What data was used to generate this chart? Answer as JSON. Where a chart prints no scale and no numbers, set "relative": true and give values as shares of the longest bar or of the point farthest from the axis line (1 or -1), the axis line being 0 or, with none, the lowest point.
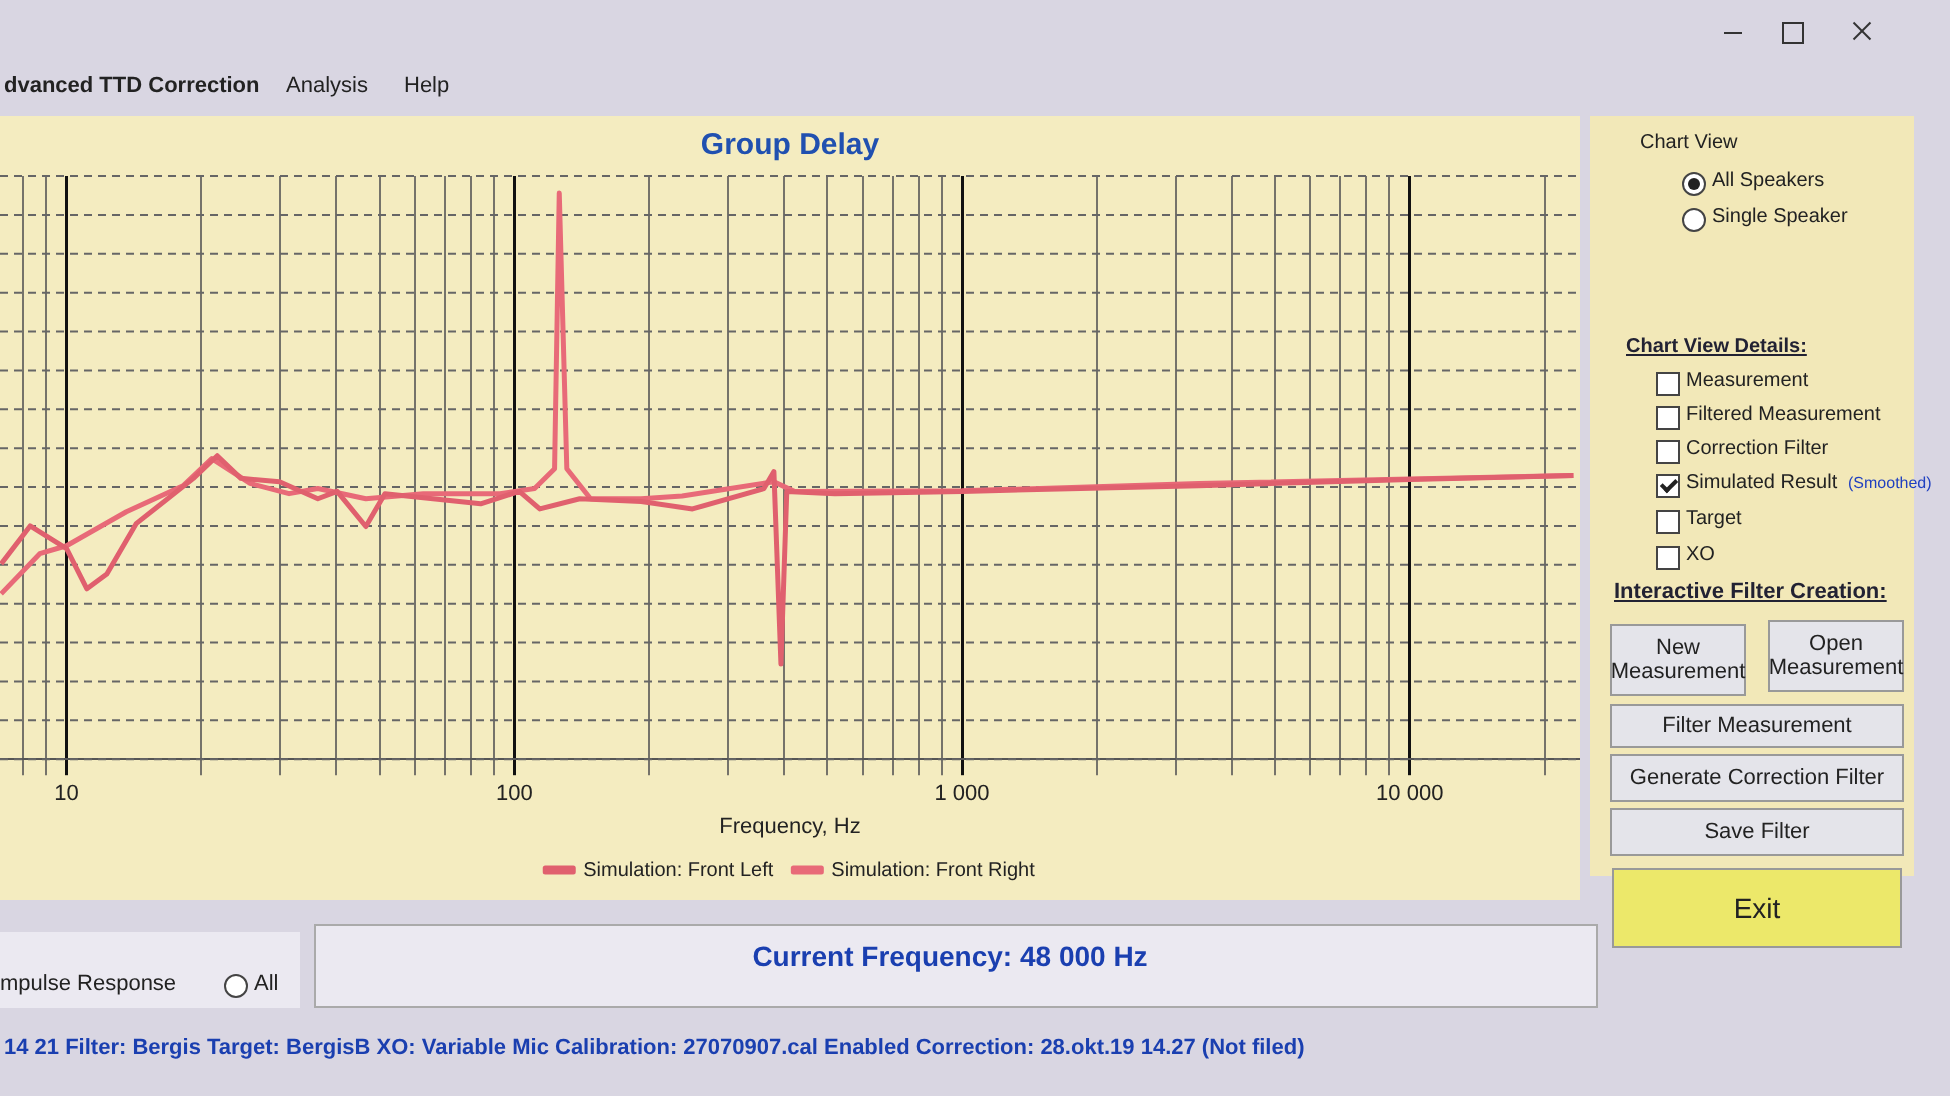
{
  "chart_data": {
    "type": "line",
    "title": "Group Delay",
    "xlabel": "Frequency, Hz",
    "relative": true,
    "log": "x",
    "xlim": [
      7.1,
      24000
    ],
    "xticks": [
      {
        "value": 8,
        "label": null
      },
      {
        "value": 9,
        "label": null
      },
      10,
      {
        "value": 20,
        "label": null
      },
      {
        "value": 30,
        "label": null
      },
      {
        "value": 40,
        "label": null
      },
      {
        "value": 50,
        "label": null
      },
      {
        "value": 60,
        "label": null
      },
      {
        "value": 70,
        "label": null
      },
      {
        "value": 80,
        "label": null
      },
      {
        "value": 90,
        "label": null
      },
      100,
      {
        "value": 200,
        "label": null
      },
      {
        "value": 300,
        "label": null
      },
      {
        "value": 400,
        "label": null
      },
      {
        "value": 500,
        "label": null
      },
      {
        "value": 600,
        "label": null
      },
      {
        "value": 700,
        "label": null
      },
      {
        "value": 800,
        "label": null
      },
      {
        "value": 900,
        "label": null
      },
      {
        "value": 1000,
        "label": "1 000"
      },
      {
        "value": 2000,
        "label": null
      },
      {
        "value": 3000,
        "label": null
      },
      {
        "value": 4000,
        "label": null
      },
      {
        "value": 5000,
        "label": null
      },
      {
        "value": 6000,
        "label": null
      },
      {
        "value": 7000,
        "label": null
      },
      {
        "value": 8000,
        "label": null
      },
      {
        "value": 9000,
        "label": null
      },
      {
        "value": 10000,
        "label": "10 000"
      },
      {
        "value": 20000,
        "label": null
      }
    ],
    "grid": true,
    "legend": "bottom",
    "marker": "none",
    "line_style": "solid",
    "series": [
      {
        "name": "Simulation: Front Left",
        "color": "#e0606e",
        "x": [
          7.14,
          8.29,
          10,
          11.1,
          12.3,
          14.3,
          19.2,
          21.7,
          24.5,
          29.9,
          36.4,
          40.2,
          46.6,
          51.4,
          65.8,
          84.1,
          102.6,
          114,
          140,
          192,
          250,
          361,
          380,
          394,
          406,
          520,
          1000,
          3380,
          10000,
          23200
        ],
        "values": [
          0.345,
          0.412,
          0.372,
          0.301,
          0.327,
          0.416,
          0.496,
          0.536,
          0.496,
          0.49,
          0.46,
          0.473,
          0.411,
          0.469,
          0.46,
          0.451,
          0.473,
          0.442,
          0.46,
          0.455,
          0.442,
          0.478,
          0.508,
          0.168,
          0.473,
          0.469,
          0.473,
          0.483,
          0.494,
          0.501
        ]
      },
      {
        "name": "Simulation: Front Right",
        "color": "#e86a78",
        "x": [
          7.14,
          8.71,
          10,
          13.6,
          18.2,
          21.1,
          25.7,
          31.4,
          36.4,
          46.6,
          62.6,
          92.9,
          111,
          123,
          126,
          131,
          148,
          192,
          237,
          380,
          422,
          1000,
          3380,
          23200
        ],
        "values": [
          0.292,
          0.363,
          0.377,
          0.437,
          0.483,
          0.531,
          0.487,
          0.469,
          0.478,
          0.46,
          0.469,
          0.469,
          0.478,
          0.513,
          1,
          0.513,
          0.46,
          0.46,
          0.465,
          0.49,
          0.473,
          0.474,
          0.487,
          0.501
        ]
      }
    ],
    "annotations": [
      "dvanced TTD Correction",
      "Analysis",
      "Help",
      "Chart View",
      "All Speakers",
      "Single Speaker",
      "Chart View Details:",
      "Measurement",
      "Filtered Measurement",
      "Correction Filter",
      "Simulated Result",
      "(Smoothed)",
      "Target",
      "XO",
      "Interactive Filter Creation:",
      "New Measurement",
      "Open Measurement",
      "Filter Measurement",
      "Generate Correction Filter",
      "Save Filter",
      "Exit",
      "Current Frequency: 48 000 Hz",
      "mpulse Response",
      "All",
      "14 21 Filter: Bergis Target: BergisB XO: Variable Mic Calibration: 27070907.cal Enabled Correction: 28.okt.19 14.27 (Not filed)"
    ]
  }
}
